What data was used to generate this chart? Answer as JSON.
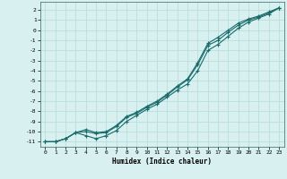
{
  "xlabel": "Humidex (Indice chaleur)",
  "bg_color": "#d8f0f0",
  "grid_color": "#b8dede",
  "line_color": "#1a6b6b",
  "xlim": [
    -0.5,
    23.5
  ],
  "ylim": [
    -11.5,
    2.8
  ],
  "xticks": [
    0,
    1,
    2,
    3,
    4,
    5,
    6,
    7,
    8,
    9,
    10,
    11,
    12,
    13,
    14,
    15,
    16,
    17,
    18,
    19,
    20,
    21,
    22,
    23
  ],
  "yticks": [
    2,
    1,
    0,
    -1,
    -2,
    -3,
    -4,
    -5,
    -6,
    -7,
    -8,
    -9,
    -10,
    -11
  ],
  "curve1_x": [
    0,
    1,
    2,
    3,
    4,
    5,
    6,
    7,
    8,
    9,
    10,
    11,
    12,
    13,
    14,
    15,
    16,
    17,
    18,
    19,
    20,
    21,
    22,
    23
  ],
  "curve1_y": [
    -11.0,
    -11.0,
    -10.7,
    -10.1,
    -9.8,
    -10.1,
    -10.0,
    -9.4,
    -8.5,
    -8.1,
    -7.5,
    -7.0,
    -6.3,
    -5.5,
    -4.8,
    -3.2,
    -1.3,
    -0.7,
    -0.0,
    0.7,
    1.1,
    1.4,
    1.8,
    2.2
  ],
  "curve2_x": [
    0,
    1,
    2,
    3,
    4,
    5,
    6,
    7,
    8,
    9,
    10,
    11,
    12,
    13,
    14,
    15,
    16,
    17,
    18,
    19,
    20,
    21,
    22,
    23
  ],
  "curve2_y": [
    -11.0,
    -11.0,
    -10.7,
    -10.1,
    -10.4,
    -10.7,
    -10.4,
    -9.9,
    -9.0,
    -8.4,
    -7.8,
    -7.3,
    -6.6,
    -5.9,
    -5.3,
    -4.0,
    -2.0,
    -1.4,
    -0.6,
    0.2,
    0.8,
    1.2,
    1.6,
    2.2
  ],
  "curve3_x": [
    0,
    1,
    2,
    3,
    4,
    5,
    6,
    7,
    8,
    9,
    10,
    11,
    12,
    13,
    14,
    15,
    16,
    17,
    18,
    19,
    20,
    21,
    22,
    23
  ],
  "curve3_y": [
    -11.0,
    -11.0,
    -10.7,
    -10.1,
    -10.0,
    -10.2,
    -10.1,
    -9.5,
    -8.6,
    -8.2,
    -7.6,
    -7.1,
    -6.4,
    -5.6,
    -4.9,
    -3.4,
    -1.5,
    -1.0,
    -0.2,
    0.5,
    1.0,
    1.3,
    1.7,
    2.2
  ]
}
